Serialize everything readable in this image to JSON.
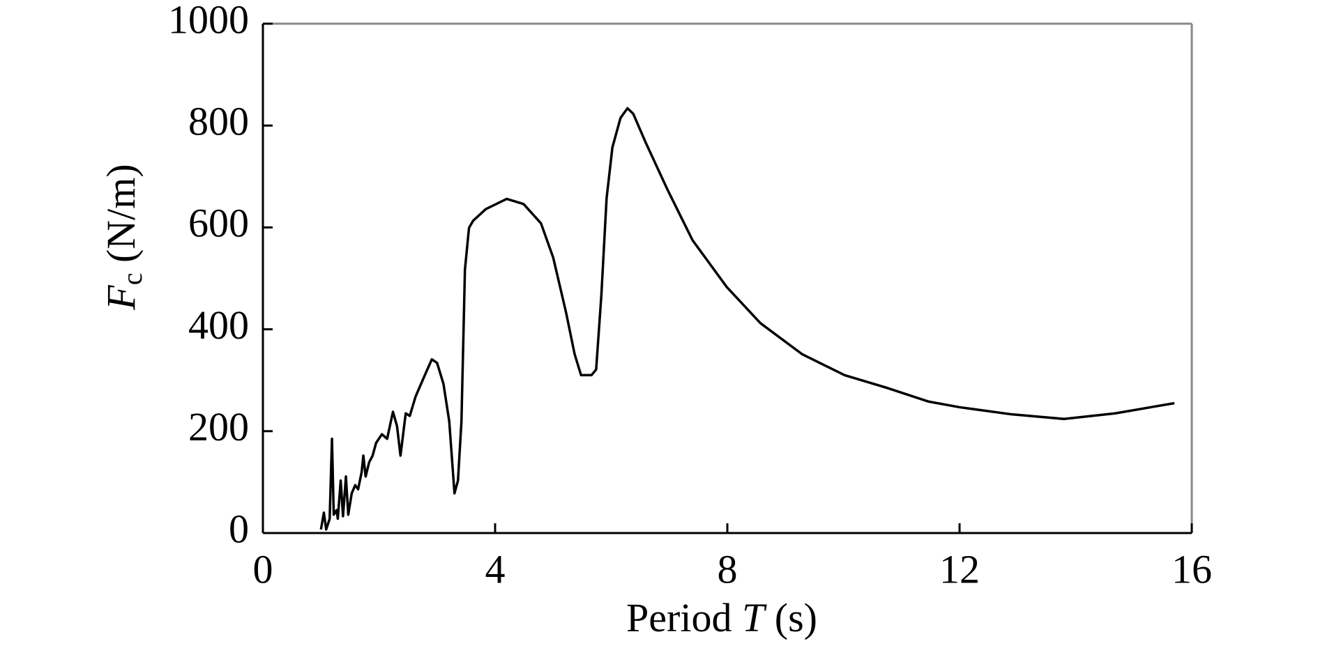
{
  "chart_data": {
    "type": "line",
    "xlabel": {
      "text": "Period ",
      "var": "T",
      "unit": " (s)"
    },
    "ylabel": {
      "var": "F",
      "sub": "c",
      "unit": " (N/m)"
    },
    "xlim": [
      0,
      16
    ],
    "xticks": [
      0,
      4,
      8,
      12,
      16
    ],
    "ylim": [
      0,
      1000
    ],
    "yticks": [
      0,
      200,
      400,
      600,
      800,
      1000
    ],
    "series": [
      {
        "color": "#000000",
        "x": [
          1.0,
          1.05,
          1.09,
          1.15,
          1.19,
          1.22,
          1.27,
          1.29,
          1.34,
          1.38,
          1.43,
          1.47,
          1.53,
          1.59,
          1.64,
          1.7,
          1.73,
          1.77,
          1.83,
          1.89,
          1.95,
          2.05,
          2.14,
          2.24,
          2.31,
          2.37,
          2.46,
          2.53,
          2.63,
          2.82,
          2.91,
          3.0,
          3.11,
          3.21,
          3.3,
          3.36,
          3.42,
          3.48,
          3.55,
          3.62,
          3.84,
          4.2,
          4.49,
          4.79,
          5.0,
          5.22,
          5.37,
          5.48,
          5.66,
          5.74,
          5.83,
          5.92,
          6.02,
          6.16,
          6.28,
          6.38,
          6.6,
          6.97,
          7.4,
          7.99,
          8.57,
          9.29,
          10.02,
          10.75,
          11.47,
          12.0,
          12.9,
          13.8,
          14.68,
          15.7
        ],
        "values": [
          7,
          40,
          7,
          28,
          185,
          36,
          45,
          28,
          103,
          33,
          111,
          36,
          78,
          94,
          86,
          119,
          152,
          111,
          139,
          152,
          177,
          194,
          185,
          238,
          210,
          152,
          235,
          230,
          268,
          318,
          341,
          334,
          293,
          219,
          78,
          103,
          219,
          517,
          599,
          613,
          636,
          656,
          646,
          608,
          541,
          434,
          351,
          310,
          310,
          321,
          467,
          657,
          757,
          815,
          834,
          823,
          765,
          674,
          575,
          483,
          412,
          351,
          310,
          285,
          258,
          247,
          233,
          224,
          235,
          255
        ]
      }
    ]
  }
}
